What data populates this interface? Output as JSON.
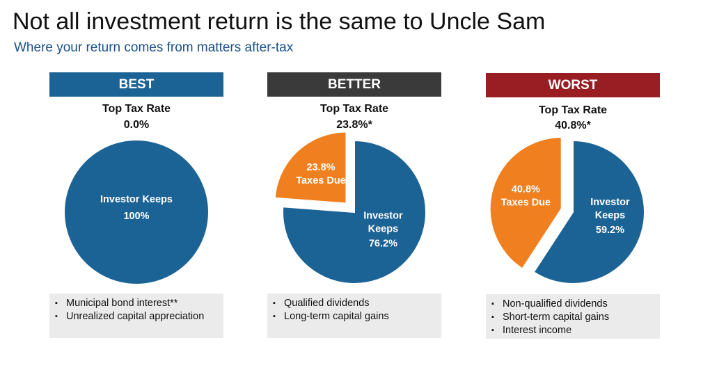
{
  "title": "Not all investment return is the same to Uncle Sam",
  "subtitle": "Where your return comes from matters after-tax",
  "colors": {
    "keeps": "#1c6395",
    "taxes": "#f07f1f",
    "best_header": "#1c6395",
    "better_header": "#3a3a3a",
    "worst_header": "#981e24",
    "bullet_bg": "#ebebeb"
  },
  "chart_data": [
    {
      "type": "pie",
      "header": "BEST",
      "rate_label": "Top Tax Rate",
      "rate_value": "0.0%",
      "slices": [
        {
          "label": "Investor Keeps",
          "value_label": "100%",
          "value": 100,
          "exploded": false
        }
      ],
      "bullets": [
        "Municipal bond interest**",
        "Unrealized capital appreciation"
      ]
    },
    {
      "type": "pie",
      "header": "BETTER",
      "rate_label": "Top Tax Rate",
      "rate_value": "23.8%*",
      "slices": [
        {
          "label": "Taxes Due",
          "value_label": "23.8%",
          "value": 23.8,
          "exploded": true
        },
        {
          "label": "Investor Keeps",
          "value_label": "76.2%",
          "value": 76.2,
          "exploded": false
        }
      ],
      "bullets": [
        "Qualified dividends",
        "Long-term capital gains"
      ]
    },
    {
      "type": "pie",
      "header": "WORST",
      "rate_label": "Top Tax Rate",
      "rate_value": "40.8%*",
      "slices": [
        {
          "label": "Taxes Due",
          "value_label": "40.8%",
          "value": 40.8,
          "exploded": true
        },
        {
          "label": "Investor Keeps",
          "value_label": "59.2%",
          "value": 59.2,
          "exploded": false
        }
      ],
      "bullets": [
        "Non-qualified dividends",
        "Short-term capital gains",
        "Interest income"
      ]
    }
  ]
}
